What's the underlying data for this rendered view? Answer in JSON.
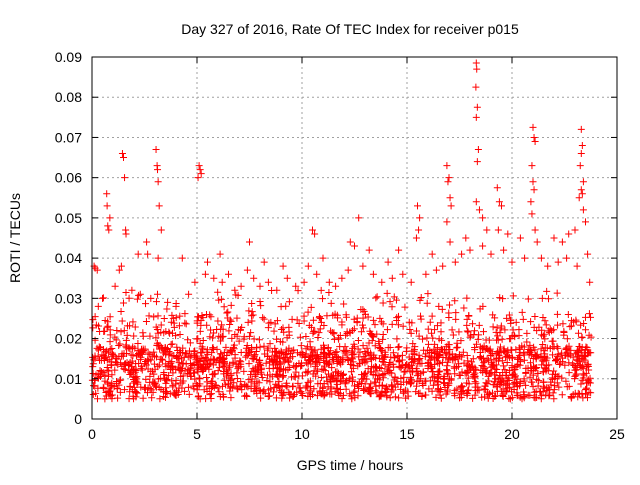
{
  "chart_data": {
    "type": "scatter",
    "title": "Day 327 of 2016, Rate Of TEC Index for receiver p015",
    "xlabel": "GPS time / hours",
    "ylabel": "ROTI / TECUs",
    "xlim": [
      0,
      25
    ],
    "ylim": [
      0,
      0.09
    ],
    "xticks": [
      0,
      5,
      10,
      15,
      20,
      25
    ],
    "xtick_labels": [
      "0",
      "5",
      "10",
      "15",
      "20",
      "25"
    ],
    "yticks": [
      0,
      0.01,
      0.02,
      0.03,
      0.04,
      0.05,
      0.06,
      0.07,
      0.08,
      0.09
    ],
    "ytick_labels": [
      "0",
      "0.01",
      "0.02",
      "0.03",
      "0.04",
      "0.05",
      "0.06",
      "0.07",
      "0.08",
      "0.09"
    ],
    "grid": true,
    "marker": "+",
    "series": [
      {
        "color": "#ff0000",
        "points": [
          [
            0.1,
            0.038
          ],
          [
            0.15,
            0.0375
          ],
          [
            0.25,
            0.037
          ],
          [
            0.7,
            0.056
          ],
          [
            0.72,
            0.053
          ],
          [
            0.75,
            0.048
          ],
          [
            0.8,
            0.047
          ],
          [
            0.85,
            0.05
          ],
          [
            1.45,
            0.066
          ],
          [
            1.5,
            0.065
          ],
          [
            1.55,
            0.06
          ],
          [
            1.6,
            0.047
          ],
          [
            1.62,
            0.046
          ],
          [
            2.6,
            0.044
          ],
          [
            2.65,
            0.041
          ],
          [
            3.05,
            0.067
          ],
          [
            3.1,
            0.063
          ],
          [
            3.12,
            0.062
          ],
          [
            3.15,
            0.059
          ],
          [
            3.2,
            0.053
          ],
          [
            3.3,
            0.047
          ],
          [
            3.15,
            0.04
          ],
          [
            5.1,
            0.063
          ],
          [
            5.15,
            0.062
          ],
          [
            5.2,
            0.061
          ],
          [
            5.05,
            0.06
          ],
          [
            7.5,
            0.044
          ],
          [
            10.5,
            0.047
          ],
          [
            10.6,
            0.046
          ],
          [
            12.7,
            0.05
          ],
          [
            15.5,
            0.053
          ],
          [
            15.6,
            0.05
          ],
          [
            15.55,
            0.047
          ],
          [
            15.45,
            0.045
          ],
          [
            16.9,
            0.063
          ],
          [
            17.0,
            0.06
          ],
          [
            16.95,
            0.059
          ],
          [
            17.05,
            0.055
          ],
          [
            17.1,
            0.053
          ],
          [
            16.9,
            0.049
          ],
          [
            17.05,
            0.044
          ],
          [
            18.3,
            0.0885
          ],
          [
            18.32,
            0.087
          ],
          [
            18.28,
            0.0825
          ],
          [
            18.35,
            0.0775
          ],
          [
            18.3,
            0.075
          ],
          [
            18.4,
            0.067
          ],
          [
            18.35,
            0.064
          ],
          [
            18.3,
            0.054
          ],
          [
            18.45,
            0.052
          ],
          [
            18.6,
            0.05
          ],
          [
            19.3,
            0.0575
          ],
          [
            19.4,
            0.054
          ],
          [
            19.5,
            0.053
          ],
          [
            19.35,
            0.047
          ],
          [
            21.0,
            0.0725
          ],
          [
            21.05,
            0.07
          ],
          [
            21.1,
            0.069
          ],
          [
            20.95,
            0.063
          ],
          [
            21.0,
            0.059
          ],
          [
            21.05,
            0.057
          ],
          [
            20.9,
            0.054
          ],
          [
            20.95,
            0.051
          ],
          [
            21.1,
            0.047
          ],
          [
            21.2,
            0.044
          ],
          [
            23.3,
            0.072
          ],
          [
            23.35,
            0.068
          ],
          [
            23.3,
            0.066
          ],
          [
            23.25,
            0.063
          ],
          [
            23.4,
            0.059
          ],
          [
            23.3,
            0.057
          ],
          [
            23.35,
            0.056
          ],
          [
            23.2,
            0.055
          ],
          [
            23.4,
            0.052
          ],
          [
            23.5,
            0.049
          ],
          [
            2.2,
            0.041
          ],
          [
            4.3,
            0.04
          ],
          [
            6.1,
            0.041
          ],
          [
            8.2,
            0.039
          ],
          [
            9.1,
            0.038
          ],
          [
            11.0,
            0.04
          ],
          [
            12.3,
            0.044
          ],
          [
            12.5,
            0.043
          ],
          [
            13.2,
            0.042
          ],
          [
            14.1,
            0.039
          ],
          [
            14.6,
            0.042
          ],
          [
            16.2,
            0.041
          ],
          [
            17.8,
            0.045
          ],
          [
            18.8,
            0.047
          ],
          [
            19.8,
            0.046
          ],
          [
            20.4,
            0.045
          ],
          [
            22.0,
            0.045
          ],
          [
            22.4,
            0.044
          ],
          [
            22.7,
            0.046
          ],
          [
            23.0,
            0.047
          ],
          [
            23.6,
            0.041
          ],
          [
            0.5,
            0.03
          ],
          [
            0.3,
            0.028
          ],
          [
            1.1,
            0.033
          ],
          [
            1.3,
            0.037
          ],
          [
            1.4,
            0.038
          ],
          [
            1.9,
            0.032
          ],
          [
            2.3,
            0.031
          ],
          [
            2.8,
            0.03
          ],
          [
            3.6,
            0.029
          ],
          [
            4.0,
            0.028
          ],
          [
            4.6,
            0.031
          ],
          [
            4.9,
            0.034
          ],
          [
            5.4,
            0.036
          ],
          [
            5.5,
            0.039
          ],
          [
            5.8,
            0.035
          ],
          [
            6.2,
            0.034
          ],
          [
            6.5,
            0.036
          ],
          [
            6.8,
            0.032
          ],
          [
            7.1,
            0.033
          ],
          [
            7.4,
            0.037
          ],
          [
            7.7,
            0.035
          ],
          [
            8.0,
            0.033
          ],
          [
            8.4,
            0.034
          ],
          [
            8.8,
            0.032
          ],
          [
            9.3,
            0.035
          ],
          [
            9.7,
            0.033
          ],
          [
            10.1,
            0.034
          ],
          [
            10.3,
            0.038
          ],
          [
            10.7,
            0.036
          ],
          [
            11.3,
            0.034
          ],
          [
            11.6,
            0.033
          ],
          [
            11.9,
            0.035
          ],
          [
            12.2,
            0.037
          ],
          [
            12.9,
            0.038
          ],
          [
            13.4,
            0.036
          ],
          [
            13.8,
            0.034
          ],
          [
            14.3,
            0.035
          ],
          [
            14.8,
            0.036
          ],
          [
            15.2,
            0.034
          ],
          [
            15.9,
            0.036
          ],
          [
            16.4,
            0.037
          ],
          [
            16.7,
            0.038
          ],
          [
            17.3,
            0.039
          ],
          [
            17.6,
            0.041
          ],
          [
            18.0,
            0.042
          ],
          [
            18.6,
            0.043
          ],
          [
            19.0,
            0.041
          ],
          [
            19.6,
            0.042
          ],
          [
            20.0,
            0.039
          ],
          [
            20.6,
            0.04
          ],
          [
            21.4,
            0.04
          ],
          [
            21.7,
            0.038
          ],
          [
            22.2,
            0.039
          ],
          [
            22.6,
            0.04
          ],
          [
            23.1,
            0.038
          ],
          [
            23.7,
            0.034
          ]
        ]
      }
    ]
  }
}
